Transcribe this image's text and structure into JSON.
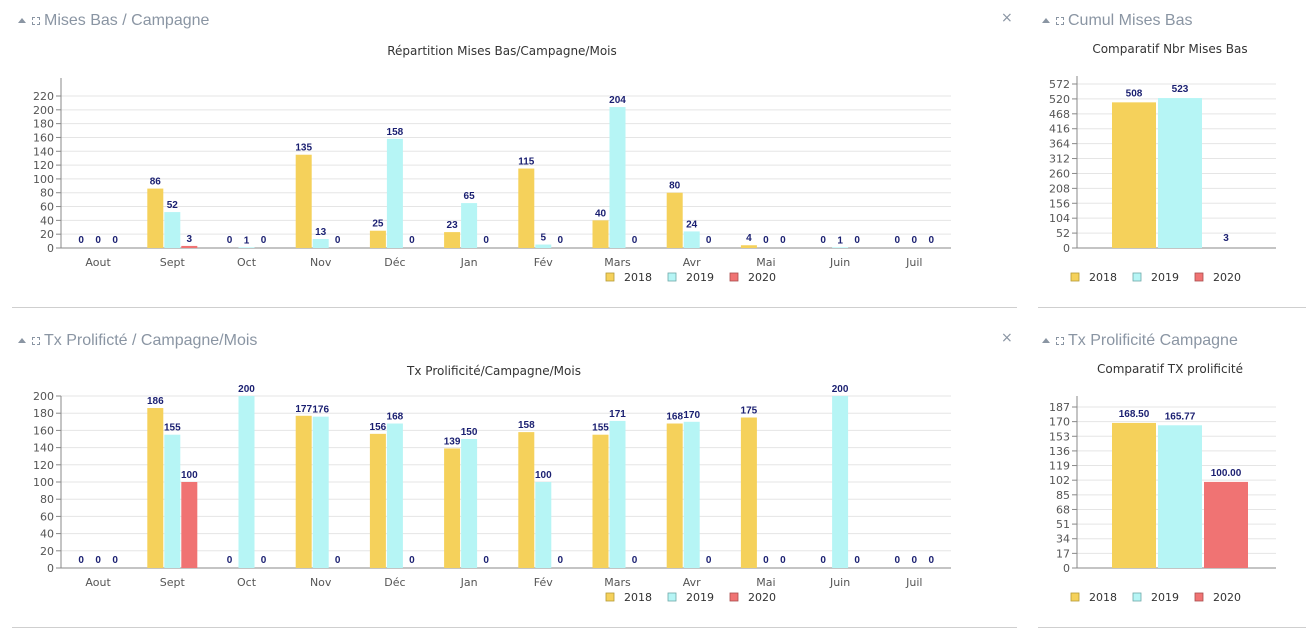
{
  "colors": {
    "s2018": "#f5d15b",
    "s2019": "#b6f5f5",
    "s2020": "#f07373",
    "value_label": "#1a1f71",
    "grid": "#e5e5e5",
    "axis": "#888888",
    "panel_title": "#8a95a3"
  },
  "panels": [
    {
      "id": "mises-bas-campagne",
      "title": "Mises Bas / Campagne",
      "has_close": true,
      "close_label": "×"
    },
    {
      "id": "cumul-mises-bas",
      "title": "Cumul Mises Bas",
      "has_close": false
    },
    {
      "id": "tx-prolificite-mois",
      "title": "Tx Prolificté / Campagne/Mois",
      "has_close": true,
      "close_label": "×"
    },
    {
      "id": "tx-prolificite-campagne",
      "title": "Tx Prolificité Campagne",
      "has_close": false
    }
  ],
  "chart_data": [
    {
      "type": "bar",
      "title": "Répartition Mises Bas/Campagne/Mois",
      "xlabel": "",
      "ylabel": "",
      "categories": [
        "Aout",
        "Sept",
        "Oct",
        "Nov",
        "Déc",
        "Jan",
        "Fév",
        "Mars",
        "Avr",
        "Mai",
        "Juin",
        "Juil"
      ],
      "series": [
        {
          "name": "2018",
          "values": [
            0,
            86,
            0,
            135,
            25,
            23,
            115,
            40,
            80,
            4,
            0,
            0
          ]
        },
        {
          "name": "2019",
          "values": [
            0,
            52,
            1,
            13,
            158,
            65,
            5,
            204,
            24,
            0,
            1,
            0
          ]
        },
        {
          "name": "2020",
          "values": [
            0,
            3,
            0,
            0,
            0,
            0,
            0,
            0,
            0,
            0,
            0,
            0
          ]
        }
      ],
      "yticks": [
        0,
        20,
        40,
        60,
        80,
        100,
        120,
        140,
        160,
        180,
        200,
        220
      ],
      "ylim": [
        0,
        235
      ],
      "grid": true,
      "legend": "bottom-center",
      "show_zero_labels": true
    },
    {
      "type": "bar",
      "title": "Comparatif Nbr Mises Bas",
      "xlabel": "",
      "ylabel": "",
      "categories": [
        ""
      ],
      "series": [
        {
          "name": "2018",
          "values": [
            508
          ],
          "label": "508"
        },
        {
          "name": "2019",
          "values": [
            523
          ],
          "label": "523"
        },
        {
          "name": "2020",
          "values": [
            3
          ],
          "label": "3"
        }
      ],
      "yticks": [
        0,
        52,
        104,
        156,
        208,
        260,
        312,
        364,
        416,
        468,
        520,
        572
      ],
      "ylim": [
        0,
        572
      ],
      "grid": true,
      "legend": "bottom-center"
    },
    {
      "type": "bar",
      "title": "Tx Prolificité/Campagne/Mois",
      "xlabel": "",
      "ylabel": "",
      "categories": [
        "Aout",
        "Sept",
        "Oct",
        "Nov",
        "Déc",
        "Jan",
        "Fév",
        "Mars",
        "Avr",
        "Mai",
        "Juin",
        "Juil"
      ],
      "series": [
        {
          "name": "2018",
          "values": [
            0,
            186,
            0,
            177,
            156,
            139,
            158,
            155,
            168,
            175,
            0,
            0
          ]
        },
        {
          "name": "2019",
          "values": [
            0,
            155,
            200,
            176,
            168,
            150,
            100,
            171,
            170,
            0,
            200,
            0
          ]
        },
        {
          "name": "2020",
          "values": [
            0,
            100,
            0,
            0,
            0,
            0,
            0,
            0,
            0,
            0,
            0,
            0
          ]
        }
      ],
      "hidden_labels": [
        [
          false,
          false,
          false,
          false,
          false,
          false,
          false,
          false,
          false,
          false,
          false,
          false
        ],
        [
          false,
          false,
          false,
          false,
          false,
          false,
          false,
          false,
          false,
          false,
          false,
          false
        ],
        [
          false,
          false,
          false,
          false,
          false,
          false,
          false,
          false,
          false,
          false,
          false,
          false
        ]
      ],
      "yticks": [
        0,
        20,
        40,
        60,
        80,
        100,
        120,
        140,
        160,
        180,
        200
      ],
      "ylim": [
        0,
        200
      ],
      "grid": true,
      "legend": "bottom-center",
      "show_zero_labels": true
    },
    {
      "type": "bar",
      "title": "Comparatif TX prolificité",
      "xlabel": "",
      "ylabel": "",
      "categories": [
        ""
      ],
      "series": [
        {
          "name": "2018",
          "values": [
            168.5
          ],
          "label": "168.50"
        },
        {
          "name": "2019",
          "values": [
            165.77
          ],
          "label": "165.77"
        },
        {
          "name": "2020",
          "values": [
            100.0
          ],
          "label": "100.00"
        }
      ],
      "yticks": [
        0,
        17,
        34,
        51,
        68,
        85,
        102,
        119,
        136,
        153,
        170,
        187
      ],
      "ylim": [
        0,
        187
      ],
      "grid": true,
      "legend": "bottom-center"
    }
  ]
}
